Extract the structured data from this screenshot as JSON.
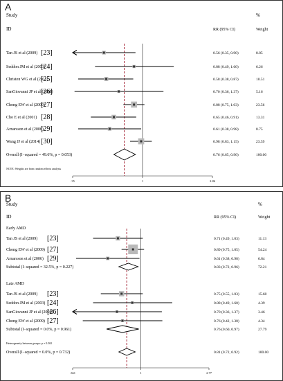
{
  "chart_data": [
    {
      "type": "forest",
      "panel_label": "A",
      "header": {
        "study": "Study",
        "id": "ID",
        "rr": "RR (95% CI)",
        "pct": "%",
        "weight": "Weight"
      },
      "xticks": [
        ".35",
        "1",
        "2.86"
      ],
      "xlim": [
        0.35,
        2.86
      ],
      "xscale": "log",
      "null_value": 1,
      "overall_line": 0.76,
      "rows": [
        {
          "kind": "study",
          "name": "Tan JS et al (2009)",
          "ref": "[23]",
          "est": 0.56,
          "lo": 0.35,
          "hi": 0.9,
          "ci": "0.56 (0.35, 0.90)",
          "weight": "8.85",
          "w": 8.85,
          "clip_lo": true
        },
        {
          "kind": "study",
          "name": "Seddon JM et al (2003)",
          "ref": "[24]",
          "est": 0.88,
          "lo": 0.49,
          "hi": 1.6,
          "ci": "0.88 (0.49, 1.60)",
          "weight": "6.26",
          "w": 6.26
        },
        {
          "kind": "study",
          "name": "Christen WG et al (2011)",
          "ref": "[25]",
          "est": 0.58,
          "lo": 0.38,
          "hi": 0.87,
          "ci": "0.58 (0.38, 0.87)",
          "weight": "10.51",
          "w": 10.51
        },
        {
          "kind": "study",
          "name": "SanGiovanni JP et al (2008)",
          "ref": "[26]",
          "est": 0.7,
          "lo": 0.36,
          "hi": 1.37,
          "ci": "0.70 (0.36, 1.37)",
          "weight": "5.16",
          "w": 5.16
        },
        {
          "kind": "study",
          "name": "Chong EW et al (2009)",
          "ref": "[27]",
          "est": 0.88,
          "lo": 0.75,
          "hi": 1.03,
          "ci": "0.88 (0.75, 1.03)",
          "weight": "23.56",
          "w": 23.56
        },
        {
          "kind": "study",
          "name": "Cho E et al (2001)",
          "ref": "[28]",
          "est": 0.65,
          "lo": 0.46,
          "hi": 0.91,
          "ci": "0.65 (0.46, 0.91)",
          "weight": "13.31",
          "w": 13.31
        },
        {
          "kind": "study",
          "name": "Arnarsson et al (2006)",
          "ref": "[29]",
          "est": 0.61,
          "lo": 0.38,
          "hi": 0.98,
          "ci": "0.61 (0.38, 0.98)",
          "weight": "8.75",
          "w": 8.75
        },
        {
          "kind": "study",
          "name": "Wang JJ et al (2014)",
          "ref": "[30]",
          "est": 0.98,
          "lo": 0.83,
          "hi": 1.15,
          "ci": "0.98 (0.83, 1.15)",
          "weight": "23.59",
          "w": 23.59
        },
        {
          "kind": "overall",
          "name": "Overall  (I−squared = 49.6%, p = 0.053)",
          "est": 0.76,
          "lo": 0.65,
          "hi": 0.9,
          "ci": "0.76 (0.65, 0.90)",
          "weight": "100.00"
        },
        {
          "kind": "note",
          "name": "NOTE: Weights are from random effects analysis"
        }
      ]
    },
    {
      "type": "forest",
      "panel_label": "B",
      "header": {
        "study": "Study",
        "id": "ID",
        "rr": "RR (95% CI)",
        "pct": "%",
        "weight": "Weight"
      },
      "xticks": [
        ".361",
        "1",
        "2.77"
      ],
      "xlim": [
        0.361,
        2.77
      ],
      "xscale": "log",
      "null_value": 1,
      "overall_line": 0.81,
      "rows": [
        {
          "kind": "group",
          "name": "Early AMD"
        },
        {
          "kind": "study",
          "name": "Tan JS et al (2009)",
          "ref": "[23]",
          "est": 0.71,
          "lo": 0.49,
          "hi": 1.03,
          "ci": "0.71 (0.49, 1.03)",
          "weight": "11.13",
          "w": 11.13
        },
        {
          "kind": "study",
          "name": "Chong EW et al (2009)",
          "ref": "[27]",
          "est": 0.89,
          "lo": 0.75,
          "hi": 1.05,
          "ci": "0.89 (0.75, 1.05)",
          "weight": "54.24",
          "w": 54.24
        },
        {
          "kind": "study",
          "name": "Arnarsson et al (2006)",
          "ref": "[29]",
          "est": 0.61,
          "lo": 0.38,
          "hi": 0.98,
          "ci": "0.61 (0.38, 0.98)",
          "weight": "6.84",
          "w": 6.84
        },
        {
          "kind": "subtotal",
          "name": "Subtotal  (I−squared = 32.5%, p = 0.227)",
          "est": 0.83,
          "lo": 0.72,
          "hi": 0.96,
          "ci": "0.83 (0.72, 0.96)",
          "weight": "72.21"
        },
        {
          "kind": "gap"
        },
        {
          "kind": "group",
          "name": "Late AMD"
        },
        {
          "kind": "study",
          "name": "Tan JS et al (2009)",
          "ref": "[23]",
          "est": 0.75,
          "lo": 0.55,
          "hi": 1.03,
          "ci": "0.75 (0.55, 1.03)",
          "weight": "15.60",
          "w": 15.6
        },
        {
          "kind": "study",
          "name": "Seddon JM et al (2003)",
          "ref": "[24]",
          "est": 0.88,
          "lo": 0.49,
          "hi": 1.6,
          "ci": "0.88 (0.49, 1.60)",
          "weight": "4.39",
          "w": 4.39
        },
        {
          "kind": "study",
          "name": "SanGiovanni JP et al (2008)",
          "ref": "[26]",
          "est": 0.7,
          "lo": 0.36,
          "hi": 1.37,
          "ci": "0.70 (0.36, 1.37)",
          "weight": "3.46",
          "w": 3.46,
          "clip_lo": true
        },
        {
          "kind": "study",
          "name": "Chong EW et al (2009)",
          "ref": "[27]",
          "est": 0.76,
          "lo": 0.42,
          "hi": 1.38,
          "ci": "0.76 (0.42, 1.38)",
          "weight": "4.34",
          "w": 4.34
        },
        {
          "kind": "subtotal",
          "name": "Subtotal  (I−squared = 0.0%, p = 0.961)",
          "est": 0.76,
          "lo": 0.6,
          "hi": 0.97,
          "ci": "0.76 (0.60, 0.97)",
          "weight": "27.79"
        },
        {
          "kind": "gap"
        },
        {
          "kind": "note",
          "name": "Heterogeneity between groups: p = 0.565"
        },
        {
          "kind": "overall",
          "name": "Overall  (I−squared = 0.0%, p = 0.732)",
          "est": 0.81,
          "lo": 0.72,
          "hi": 0.92,
          "ci": "0.81 (0.72, 0.92)",
          "weight": "100.00"
        }
      ]
    }
  ]
}
